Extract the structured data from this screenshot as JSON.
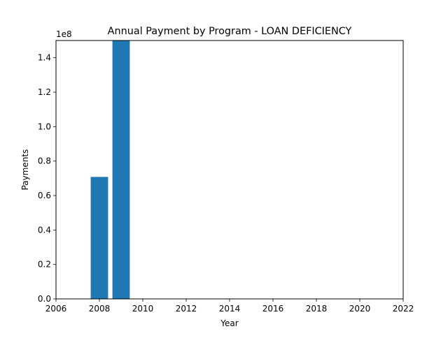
{
  "chart_data": {
    "type": "bar",
    "title": "Annual Payment by Program - LOAN DEFICIENCY",
    "xlabel": "Year",
    "ylabel": "Payments",
    "y_offset_label": "1e8",
    "x": [
      2008,
      2009
    ],
    "values": [
      70800000,
      150000000
    ],
    "xlim": [
      2006,
      2022
    ],
    "ylim": [
      0,
      150000000
    ],
    "x_ticks": [
      2006,
      2008,
      2010,
      2012,
      2014,
      2016,
      2018,
      2020,
      2022
    ],
    "x_tick_labels": [
      "2006",
      "2008",
      "2010",
      "2012",
      "2014",
      "2016",
      "2018",
      "2020",
      "2022"
    ],
    "y_ticks": [
      0,
      20000000,
      40000000,
      60000000,
      80000000,
      100000000,
      120000000,
      140000000
    ],
    "y_tick_labels": [
      "0.0",
      "0.2",
      "0.4",
      "0.6",
      "0.8",
      "1.0",
      "1.2",
      "1.4"
    ],
    "grid": false,
    "bar_color": "#1f77b4"
  }
}
